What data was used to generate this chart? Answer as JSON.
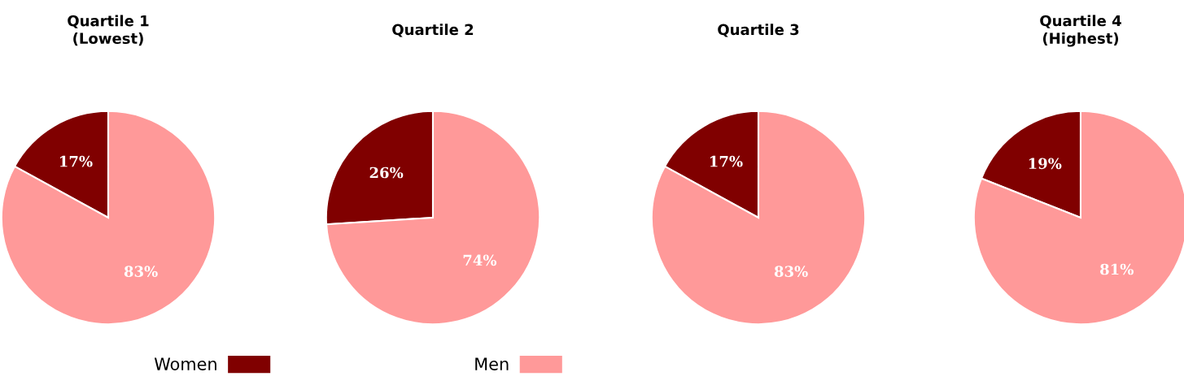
{
  "chart_data": [
    {
      "type": "pie",
      "title": "Quartile 1\n(Lowest)",
      "categories": [
        "Women",
        "Men"
      ],
      "values": [
        17,
        83
      ],
      "value_labels": [
        "17%",
        "83%"
      ],
      "colors": [
        "#800000",
        "#ff9999"
      ],
      "legend": "bottom"
    },
    {
      "type": "pie",
      "title": "Quartile 2",
      "categories": [
        null,
        null
      ],
      "values": [
        26,
        74
      ],
      "value_labels": [
        "26%",
        "74%"
      ],
      "colors": [
        "#800000",
        "#ff9999"
      ]
    },
    {
      "type": "pie",
      "title": "Quartile 3",
      "categories": [
        null,
        null
      ],
      "values": [
        17,
        83
      ],
      "value_labels": [
        "17%",
        "83%"
      ],
      "colors": [
        "#800000",
        "#ff9999"
      ]
    },
    {
      "type": "pie",
      "title": "Quartile 4\n(Highest)",
      "categories": [
        null,
        null
      ],
      "values": [
        19,
        81
      ],
      "value_labels": [
        "19%",
        "81%"
      ],
      "colors": [
        "#800000",
        "#ff9999"
      ]
    }
  ]
}
